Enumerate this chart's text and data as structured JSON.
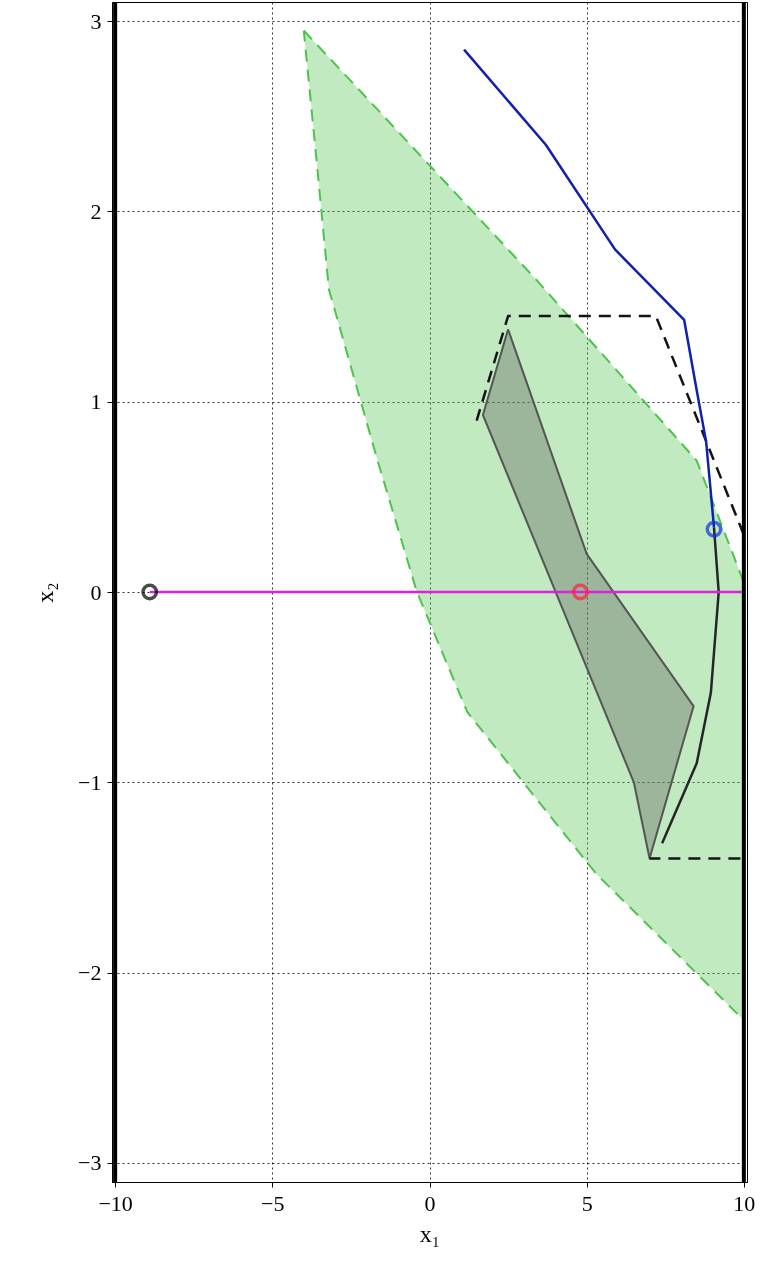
{
  "chart_data": {
    "type": "line",
    "xlabel": "x₁",
    "ylabel": "x₂",
    "xlim": [
      -10.1,
      10.1
    ],
    "ylim": [
      -3.1,
      3.1
    ],
    "xticks": [
      -10,
      -5,
      0,
      5,
      10
    ],
    "yticks": [
      -3,
      -2,
      -1,
      0,
      1,
      2,
      3
    ],
    "grid": true,
    "series": [
      {
        "type": "area",
        "color": "#4cc44c",
        "line_style": "dashed",
        "x": [
          -4.0,
          3.4,
          8.5,
          10,
          10,
          5.3,
          1.2,
          -0.4,
          -1.65,
          -3.2,
          -3.6
        ],
        "values": [
          2.95,
          1.64,
          0.69,
          0.05,
          -2.25,
          -1.48,
          -0.63,
          0,
          0.69,
          1.59,
          2.28
        ]
      },
      {
        "type": "area",
        "color": "#555555",
        "line_style": "solid",
        "x": [
          2.5,
          1.7,
          6.5,
          7.0,
          8.4,
          5.0
        ],
        "values": [
          1.38,
          0.93,
          -1.0,
          -1.4,
          -0.6,
          0.2
        ]
      },
      {
        "color": "#141414",
        "line_style": "dashed",
        "x": [
          1.5,
          2.5,
          7.2,
          10,
          10,
          7.0
        ],
        "values": [
          0.9,
          1.45,
          1.45,
          0.3,
          -1.4,
          -1.4
        ]
      },
      {
        "color": "#1020b0",
        "line_style": "solid",
        "x": [
          1.1,
          3.7,
          5.9,
          8.1,
          8.5,
          8.8,
          9.05
        ],
        "values": [
          2.85,
          2.35,
          1.8,
          1.43,
          1.06,
          0.79,
          0.34
        ]
      },
      {
        "color": "#262626",
        "line_style": "solid",
        "x": [
          9.05,
          9.2,
          8.95,
          8.5,
          7.4
        ],
        "values": [
          0.34,
          0,
          -0.53,
          -0.9,
          -1.32
        ]
      },
      {
        "color": "#e020e0",
        "line_style": "solid",
        "x": [
          -8.9,
          10
        ],
        "values": [
          0,
          0
        ]
      },
      {
        "type": "scatter",
        "color": "#000000",
        "marker": "circle",
        "x": [
          -8.9
        ],
        "values": [
          0
        ]
      },
      {
        "type": "scatter",
        "color": "#ff2040",
        "marker": "circle",
        "x": [
          4.8
        ],
        "values": [
          0
        ]
      },
      {
        "type": "scatter",
        "color": "#1030e0",
        "marker": "circle",
        "x": [
          9.05
        ],
        "values": [
          0.33
        ]
      }
    ],
    "ref_lines": [
      {
        "axis": "x",
        "value": -10,
        "color": "#000000"
      },
      {
        "axis": "x",
        "value": 10,
        "color": "#000000"
      }
    ]
  }
}
